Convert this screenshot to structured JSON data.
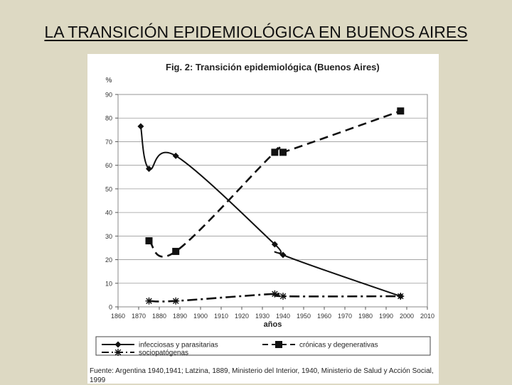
{
  "slide": {
    "title": "LA TRANSICIÓN EPIDEMIOLÓGICA EN BUENOS AIRES"
  },
  "figure": {
    "source": "Fuente: Argentina 1940,1941; Latzina, 1889, Ministerio del Interior, 1940, Ministerio de Salud y Acción Social, 1999"
  },
  "chart_data": {
    "type": "line",
    "title": "Fig. 2: Transición epidemiológica (Buenos Aires)",
    "xlabel": "años",
    "ylabel": "%",
    "xlim": [
      1860,
      2010
    ],
    "ylim": [
      0,
      90
    ],
    "x_ticks": [
      "1860",
      "1870",
      "1880",
      "1890",
      "1900",
      "1910",
      "1920",
      "1930",
      "1940",
      "1950",
      "1960",
      "1970",
      "1980",
      "1990",
      "2000",
      "2010"
    ],
    "y_ticks": [
      "0",
      "10",
      "20",
      "30",
      "40",
      "50",
      "60",
      "70",
      "80",
      "90"
    ],
    "grid": "horizontal",
    "legend_position": "bottom",
    "series": [
      {
        "name": "infecciosas y parasitarias",
        "marker": "diamond",
        "dash": "solid",
        "x": [
          1871,
          1875,
          1888,
          1936,
          1940,
          1997
        ],
        "y": [
          76.5,
          58.5,
          64,
          26.5,
          22,
          4.5
        ]
      },
      {
        "name": "crónicas y degenerativas",
        "marker": "square",
        "dash": "dash",
        "x": [
          1875,
          1888,
          1936,
          1940,
          1997
        ],
        "y": [
          28,
          23.5,
          65.5,
          65.5,
          83
        ]
      },
      {
        "name": "sociopatógenas",
        "marker": "asterisk",
        "dash": "dashdot",
        "x": [
          1875,
          1888,
          1936,
          1940,
          1997
        ],
        "y": [
          2.5,
          2.5,
          5.5,
          4.5,
          4.5
        ]
      }
    ]
  }
}
